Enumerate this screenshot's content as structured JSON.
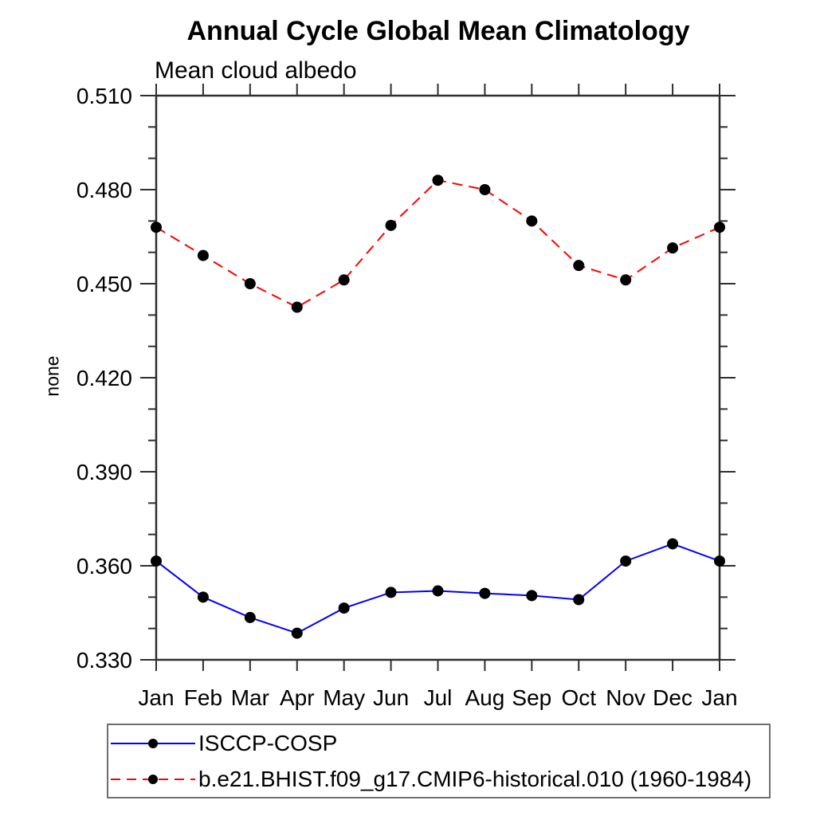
{
  "title": "Annual Cycle Global Mean Climatology",
  "subtitle": "Mean cloud albedo",
  "chart_data": {
    "type": "line",
    "categories": [
      "Jan",
      "Feb",
      "Mar",
      "Apr",
      "May",
      "Jun",
      "Jul",
      "Aug",
      "Sep",
      "Oct",
      "Nov",
      "Dec",
      "Jan"
    ],
    "series": [
      {
        "name": "ISCCP-COSP",
        "color": "#0000ff",
        "dash": "solid",
        "marker": "filled-black-circle",
        "values": [
          0.3615,
          0.35,
          0.3435,
          0.3385,
          0.3465,
          0.3515,
          0.352,
          0.3512,
          0.3505,
          0.3492,
          0.3615,
          0.367,
          0.3615
        ]
      },
      {
        "name": "b.e21.BHIST.f09_g17.CMIP6-historical.010 (1960-1984)",
        "color": "#ff0000",
        "dash": "dashed",
        "marker": "filled-black-circle",
        "values": [
          0.468,
          0.459,
          0.45,
          0.4425,
          0.4512,
          0.4686,
          0.483,
          0.48,
          0.47,
          0.4558,
          0.4512,
          0.4614,
          0.468
        ]
      }
    ],
    "xlabel": "",
    "ylabel": "none",
    "ylim": [
      0.33,
      0.51
    ],
    "ytick_major": 0.03,
    "ytick_minor": 0.01,
    "yticklabels": [
      "0.330",
      "0.360",
      "0.390",
      "0.420",
      "0.450",
      "0.480",
      "0.510"
    ],
    "marker_color": "#000000",
    "axis_color": "#2e2e2e",
    "grid": false,
    "legend_position": "bottom-left-box",
    "ticks_direction": "out"
  }
}
